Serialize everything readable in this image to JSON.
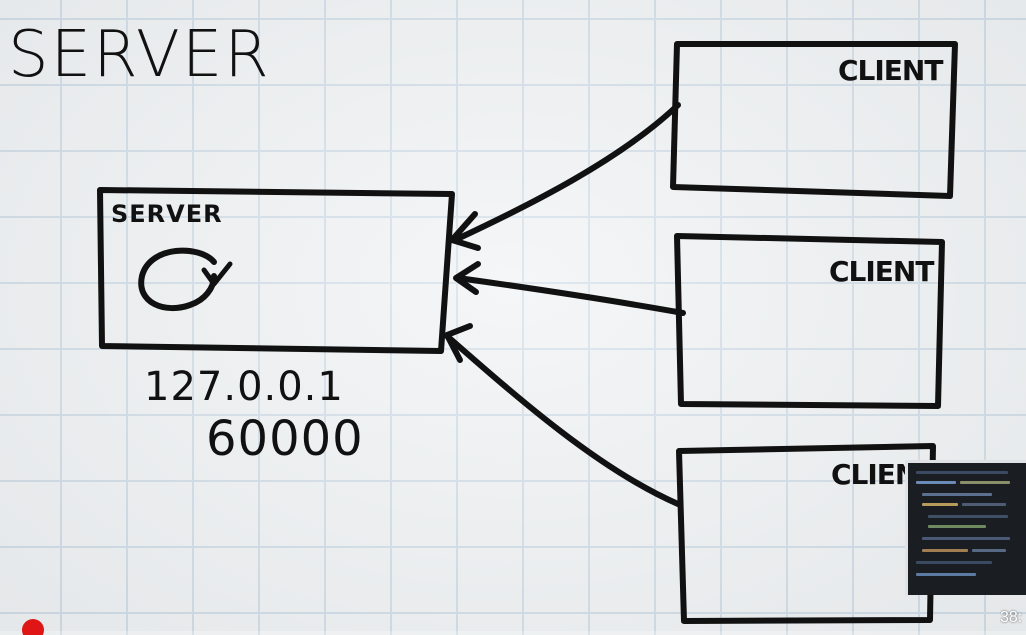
{
  "diagram": {
    "title": "SERVER",
    "server_box": {
      "label": "SERVER",
      "loop_icon": "circular-arrow-icon"
    },
    "address": {
      "ip": "127.0.0.1",
      "port": "60000"
    },
    "clients": [
      {
        "label": "CLIENT"
      },
      {
        "label": "CLIENT"
      },
      {
        "label": "CLIENT"
      }
    ]
  },
  "player": {
    "timestamp": "38:",
    "progress_color": "#e01616",
    "pip_thumbnail": "code-editor-thumbnail"
  },
  "colors": {
    "ink": "#111111",
    "grid": "#cfdbe6",
    "paper": "#eef1f3"
  }
}
